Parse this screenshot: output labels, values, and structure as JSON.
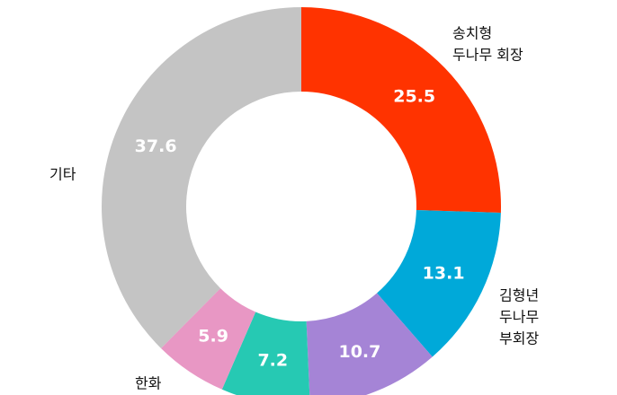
{
  "chart_data": {
    "type": "donut",
    "categories": [
      [
        "송치형",
        "두나무 회장"
      ],
      [
        "김형년",
        "두나무",
        "부회장"
      ],
      null,
      null,
      [
        "한화"
      ],
      [
        "기타"
      ]
    ],
    "values": [
      25.5,
      13.1,
      10.7,
      7.2,
      5.9,
      37.6
    ],
    "colors": [
      "#ff3300",
      "#00a9d9",
      "#a584d6",
      "#26c9b3",
      "#e897c4",
      "#c4c4c4"
    ]
  }
}
